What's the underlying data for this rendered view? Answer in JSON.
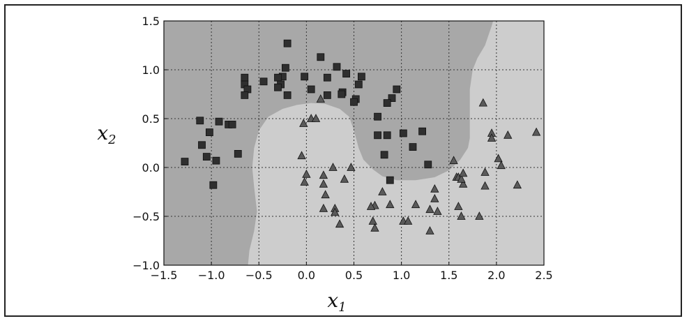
{
  "chart_data": {
    "type": "scatter",
    "title": "",
    "xlabel": "x",
    "xlabel_sub": "1",
    "ylabel": "x",
    "ylabel_sub": "2",
    "xlim": [
      -1.5,
      2.5
    ],
    "ylim": [
      -1.0,
      1.5
    ],
    "x_ticks": [
      "−1.5",
      "−1.0",
      "−0.5",
      "0.0",
      "0.5",
      "1.0",
      "1.5",
      "2.0",
      "2.5"
    ],
    "y_ticks": [
      "1.5",
      "1.0",
      "0.5",
      "0.0",
      "−0.5",
      "−1.0"
    ],
    "grid": true,
    "legend": "none",
    "background": {
      "dark_region_color": "#a8a8a8",
      "light_region_color": "#cdcdcd"
    },
    "series": [
      {
        "marker": "square",
        "color": "#2f2f2f",
        "points": [
          [
            -0.2,
            1.27
          ],
          [
            0.15,
            1.13
          ],
          [
            -0.22,
            1.02
          ],
          [
            -0.25,
            0.93
          ],
          [
            -0.3,
            0.92
          ],
          [
            -0.65,
            0.92
          ],
          [
            -0.65,
            0.85
          ],
          [
            -0.62,
            0.8
          ],
          [
            -0.65,
            0.74
          ],
          [
            -0.45,
            0.88
          ],
          [
            -0.27,
            0.85
          ],
          [
            -0.3,
            0.82
          ],
          [
            -0.2,
            0.74
          ],
          [
            -0.02,
            0.93
          ],
          [
            0.05,
            0.8
          ],
          [
            0.22,
            0.92
          ],
          [
            0.32,
            1.03
          ],
          [
            0.42,
            0.96
          ],
          [
            0.58,
            0.93
          ],
          [
            0.38,
            0.77
          ],
          [
            0.37,
            0.75
          ],
          [
            0.22,
            0.74
          ],
          [
            0.55,
            0.85
          ],
          [
            0.52,
            0.7
          ],
          [
            0.5,
            0.67
          ],
          [
            0.95,
            0.8
          ],
          [
            0.9,
            0.71
          ],
          [
            0.85,
            0.66
          ],
          [
            0.75,
            0.52
          ],
          [
            0.75,
            0.33
          ],
          [
            0.85,
            0.33
          ],
          [
            1.02,
            0.35
          ],
          [
            1.22,
            0.37
          ],
          [
            1.12,
            0.21
          ],
          [
            0.82,
            0.13
          ],
          [
            1.28,
            0.03
          ],
          [
            0.88,
            -0.13
          ],
          [
            -1.12,
            0.48
          ],
          [
            -0.92,
            0.47
          ],
          [
            -1.02,
            0.36
          ],
          [
            -0.82,
            0.44
          ],
          [
            -0.78,
            0.44
          ],
          [
            -1.1,
            0.23
          ],
          [
            -1.05,
            0.11
          ],
          [
            -0.95,
            0.07
          ],
          [
            -0.72,
            0.14
          ],
          [
            -1.28,
            0.06
          ],
          [
            -0.98,
            -0.18
          ]
        ]
      },
      {
        "marker": "triangle",
        "color": "#5a5a5a",
        "points": [
          [
            0.15,
            0.7
          ],
          [
            0.05,
            0.5
          ],
          [
            0.1,
            0.5
          ],
          [
            -0.03,
            0.45
          ],
          [
            -0.05,
            0.12
          ],
          [
            0.0,
            -0.07
          ],
          [
            -0.02,
            -0.15
          ],
          [
            0.18,
            -0.08
          ],
          [
            0.18,
            -0.17
          ],
          [
            0.28,
            0.0
          ],
          [
            0.4,
            -0.12
          ],
          [
            0.47,
            0.0
          ],
          [
            0.2,
            -0.28
          ],
          [
            0.3,
            -0.42
          ],
          [
            0.3,
            -0.46
          ],
          [
            0.18,
            -0.42
          ],
          [
            0.35,
            -0.58
          ],
          [
            0.72,
            -0.39
          ],
          [
            0.68,
            -0.4
          ],
          [
            0.8,
            -0.25
          ],
          [
            0.88,
            -0.38
          ],
          [
            0.7,
            -0.55
          ],
          [
            0.72,
            -0.62
          ],
          [
            1.02,
            -0.55
          ],
          [
            1.07,
            -0.55
          ],
          [
            1.15,
            -0.38
          ],
          [
            1.3,
            -0.43
          ],
          [
            1.3,
            -0.65
          ],
          [
            1.38,
            -0.45
          ],
          [
            1.35,
            -0.32
          ],
          [
            1.35,
            -0.22
          ],
          [
            1.55,
            0.07
          ],
          [
            1.58,
            -0.1
          ],
          [
            1.6,
            -0.1
          ],
          [
            1.65,
            -0.17
          ],
          [
            1.63,
            -0.12
          ],
          [
            1.65,
            -0.06
          ],
          [
            1.6,
            -0.4
          ],
          [
            1.63,
            -0.5
          ],
          [
            1.82,
            -0.5
          ],
          [
            1.88,
            -0.05
          ],
          [
            1.88,
            -0.19
          ],
          [
            1.95,
            0.35
          ],
          [
            1.95,
            0.3
          ],
          [
            2.02,
            0.09
          ],
          [
            2.05,
            0.02
          ],
          [
            2.12,
            0.33
          ],
          [
            1.86,
            0.66
          ],
          [
            2.22,
            -0.18
          ],
          [
            2.42,
            0.36
          ]
        ]
      }
    ]
  }
}
